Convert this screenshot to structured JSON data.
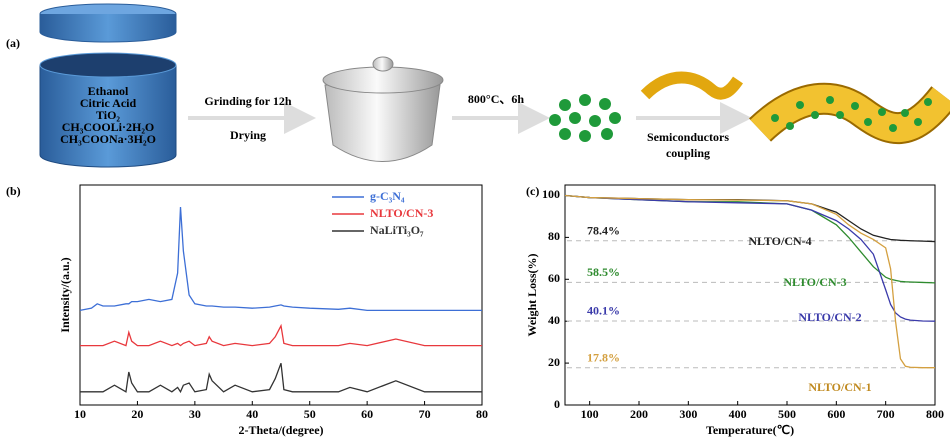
{
  "scheme": {
    "label": "(a)",
    "cylinder_text": [
      "Ethanol",
      "Citric Acid",
      "TiO₂",
      "CH₃COOLi·2H₂O",
      "CH₃COONa·3H₂O"
    ],
    "steps": [
      [
        "Grinding for 12h",
        "Drying"
      ],
      [
        "800°C、6h"
      ],
      [
        "Semiconductors",
        "coupling"
      ]
    ]
  },
  "chart_data": [
    {
      "type": "line",
      "panel_label": "(b)",
      "xlabel": "2-Theta/(degree)",
      "ylabel": "Intensity/(a.u.)",
      "xlim": [
        10,
        80
      ],
      "xticks": [
        10,
        20,
        30,
        40,
        50,
        60,
        70,
        80
      ],
      "ylim": [
        0,
        100
      ],
      "legend": "upper right",
      "x": [
        10,
        12,
        13,
        14,
        16,
        18,
        18.5,
        19,
        20,
        22,
        24,
        26,
        27,
        27.5,
        28,
        29,
        30,
        32,
        32.5,
        33,
        35,
        37,
        40,
        43,
        44,
        45,
        45.5,
        47,
        50,
        55,
        57,
        60,
        65,
        70,
        75,
        80
      ],
      "series": [
        {
          "name": "g-C₃N₄",
          "color": "#3d6fd6",
          "values": [
            43,
            44,
            46,
            45,
            45,
            46,
            46,
            47,
            47,
            48,
            47,
            48,
            60,
            90,
            70,
            50,
            46,
            45,
            45,
            45,
            44.5,
            44.5,
            44,
            44.5,
            45,
            45.5,
            45,
            44.5,
            44,
            43.5,
            44,
            43,
            43,
            43,
            43,
            43
          ]
        },
        {
          "name": "NLTO/CN-3",
          "color": "#e8383d",
          "values": [
            27,
            27,
            27,
            27,
            29,
            27,
            33,
            29,
            27,
            27,
            29,
            27,
            28,
            27,
            28,
            29,
            27,
            28,
            31,
            29,
            27,
            28,
            27,
            28,
            31,
            36,
            28,
            27,
            27,
            27,
            28,
            27,
            30,
            27,
            27,
            27
          ]
        },
        {
          "name": "NaLiTi₃O₇",
          "color": "#333333",
          "values": [
            6,
            6,
            6,
            6,
            9,
            6,
            15,
            10,
            6,
            6,
            9,
            6,
            8,
            6,
            9,
            10,
            6,
            7,
            14,
            11,
            6,
            9,
            6,
            7,
            12,
            19,
            7,
            6,
            6,
            6,
            8,
            6,
            11,
            6,
            6,
            6
          ]
        }
      ]
    },
    {
      "type": "line",
      "panel_label": "(c)",
      "xlabel": "Temperature(℃)",
      "ylabel": "Weight Loss(%)",
      "xlim": [
        50,
        800
      ],
      "xticks": [
        100,
        200,
        300,
        400,
        500,
        600,
        700,
        800
      ],
      "ylim": [
        0,
        105
      ],
      "yticks": [
        0,
        20,
        40,
        60,
        80,
        100
      ],
      "x": [
        50,
        100,
        200,
        300,
        400,
        500,
        550,
        600,
        625,
        650,
        675,
        700,
        710,
        720,
        730,
        740,
        750,
        775,
        800
      ],
      "series": [
        {
          "name": "NLTO/CN-4",
          "color": "#222222",
          "values": [
            100,
            99,
            98.5,
            98,
            98,
            97.5,
            96,
            92,
            88,
            84,
            81,
            79.5,
            79,
            78.8,
            78.6,
            78.5,
            78.4,
            78.2,
            78
          ]
        },
        {
          "name": "NLTO/CN-3",
          "color": "#2e8b2e",
          "values": [
            100,
            99,
            98,
            97,
            97,
            96,
            93,
            86,
            80,
            73,
            66,
            61,
            60,
            59.5,
            59,
            58.8,
            58.7,
            58.5,
            58.3
          ]
        },
        {
          "name": "NLTO/CN-2",
          "color": "#3a3aaa",
          "values": [
            100,
            99,
            98,
            97,
            96.5,
            96,
            93,
            88,
            84,
            79,
            72,
            55,
            48,
            44,
            42,
            41,
            40.5,
            40.1,
            40
          ]
        },
        {
          "name": "NLTO/CN-1",
          "color": "#d4a040",
          "values": [
            100,
            99,
            98.5,
            98,
            97.8,
            97.5,
            96,
            91,
            86,
            82,
            79,
            75,
            65,
            40,
            22,
            18.5,
            18,
            17.8,
            17.8
          ]
        }
      ],
      "annotations": [
        {
          "value": 78.4,
          "label": "78.4%",
          "color": "#222222"
        },
        {
          "value": 58.5,
          "label": "58.5%",
          "color": "#2e8b2e"
        },
        {
          "value": 40.1,
          "label": "40.1%",
          "color": "#3a3aaa"
        },
        {
          "value": 17.8,
          "label": "17.8%",
          "color": "#d4a040"
        }
      ]
    }
  ]
}
